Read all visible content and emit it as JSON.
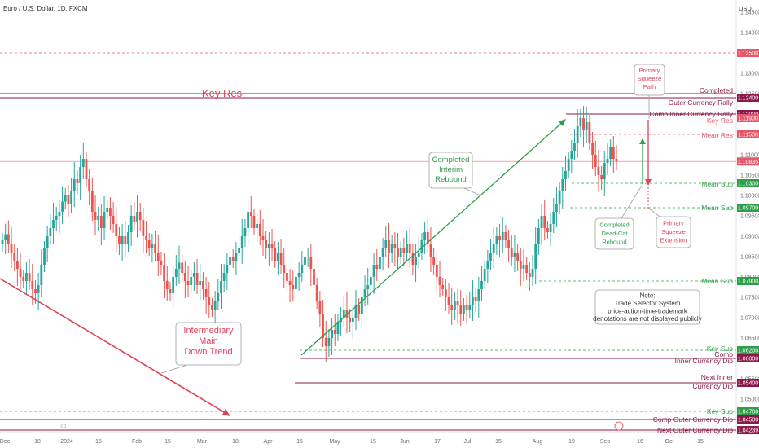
{
  "chart_data": {
    "type": "candlestick",
    "title": "Euro / U.S. Dollar, 1D, FXCM",
    "currency_label": "USD",
    "y_ticks": [
      1.145,
      1.14,
      1.135,
      1.13,
      1.125,
      1.12,
      1.115,
      1.11,
      1.105,
      1.1,
      1.095,
      1.09,
      1.085,
      1.08,
      1.075,
      1.07,
      1.065,
      1.06,
      1.055,
      1.05,
      1.045
    ],
    "ylim": [
      1.042,
      1.148
    ],
    "x_ticks": [
      "Dec",
      "18",
      "2024",
      "15",
      "Feb",
      "15",
      "Mar",
      "18",
      "Apr",
      "15",
      "May",
      "15",
      "Jun",
      "17",
      "Jul",
      "15",
      "Aug",
      "19",
      "Sep",
      "16",
      "Oct",
      "15"
    ],
    "current_price": 1.10835,
    "price_tags": [
      {
        "value": 1.135,
        "label": "1.13500",
        "color": "#e8566b"
      },
      {
        "value": 1.124,
        "label": "1.12400",
        "color": "#8b1a4a"
      },
      {
        "value": 1.12,
        "label": "1.12000",
        "color": "#8b1a4a"
      },
      {
        "value": 1.119,
        "label": "1.11900",
        "color": "#e8566b"
      },
      {
        "value": 1.115,
        "label": "1.11500",
        "color": "#e8566b"
      },
      {
        "value": 1.10835,
        "label": "1.10835",
        "color": "#e8566b"
      },
      {
        "value": 1.103,
        "label": "1.10300",
        "color": "#2e9e4a"
      },
      {
        "value": 1.097,
        "label": "1.09700",
        "color": "#2e9e4a"
      },
      {
        "value": 1.079,
        "label": "1.07900",
        "color": "#2e9e4a"
      },
      {
        "value": 1.062,
        "label": "1.06200",
        "color": "#2e9e4a"
      },
      {
        "value": 1.06,
        "label": "1.06000",
        "color": "#8b1a4a"
      },
      {
        "value": 1.054,
        "label": "1.05400",
        "color": "#8b1a4a"
      },
      {
        "value": 1.047,
        "label": "1.04700",
        "color": "#2e9e4a"
      },
      {
        "value": 1.045,
        "label": "1.04500",
        "color": "#8b1a4a"
      },
      {
        "value": 1.04239,
        "label": "1.04239",
        "color": "#8b1a4a"
      }
    ],
    "levels": [
      {
        "label": "Key Res",
        "value": 1.124,
        "color": "#8b1a4a"
      },
      {
        "label": "Completed",
        "value": 1.125,
        "color": "#8b1a4a"
      },
      {
        "label": "Outer Currency Rally",
        "value": 1.124,
        "color": "#8b1a4a"
      },
      {
        "label": "Comp Inner Currency Rally",
        "value": 1.12,
        "color": "#8b1a4a"
      },
      {
        "label": "Key Res",
        "value": 1.119,
        "color": "#e8566b"
      },
      {
        "label": "Mean Res",
        "value": 1.115,
        "color": "#e8566b"
      },
      {
        "label": "Mean Sup",
        "value": 1.103,
        "color": "#2e9e4a"
      },
      {
        "label": "Mean Sup",
        "value": 1.097,
        "color": "#2e9e4a"
      },
      {
        "label": "Mean Sup",
        "value": 1.079,
        "color": "#2e9e4a"
      },
      {
        "label": "Key Sup",
        "value": 1.062,
        "color": "#2e9e4a"
      },
      {
        "label": "Comp",
        "value": 1.061,
        "color": "#8b1a4a"
      },
      {
        "label": "Inner Currency Dip",
        "value": 1.06,
        "color": "#8b1a4a"
      },
      {
        "label": "Next Inner",
        "value": 1.055,
        "color": "#8b1a4a"
      },
      {
        "label": "Currency Dip",
        "value": 1.054,
        "color": "#8b1a4a"
      },
      {
        "label": "Key Sup",
        "value": 1.047,
        "color": "#2e9e4a"
      },
      {
        "label": "Comp Outer Currency Dip",
        "value": 1.045,
        "color": "#8b1a4a"
      },
      {
        "label": "Next Outer Currency Dip",
        "value": 1.04239,
        "color": "#8b1a4a"
      }
    ],
    "annotations": {
      "key_res_left": "Key Res",
      "primary_squeeze_path": [
        "Primary",
        "Squeeze",
        "Path"
      ],
      "completed_interim_rebound": [
        "Completed",
        "Interim",
        "Rebound"
      ],
      "completed_dead_cat_rebound": [
        "Completed",
        "Dead-Cat",
        "Rebound"
      ],
      "primary_squeeze_extension": [
        "Primary",
        "Squeeze",
        "Extension"
      ],
      "intermediary_main_down_trend": [
        "Intermediary",
        "Main",
        "Down Trend"
      ],
      "note": [
        "Note:",
        "Trade Selector System",
        "price-action-time-trademark",
        "denotations are not displayed publicly"
      ]
    },
    "series": [
      {
        "values": [
          1.089,
          1.0905,
          1.088,
          1.086,
          1.084,
          1.082,
          1.08,
          1.079,
          1.081,
          1.079,
          1.077,
          1.076,
          1.078,
          1.083,
          1.087,
          1.09,
          1.092,
          1.094,
          1.095,
          1.096,
          1.0985,
          1.1,
          1.098,
          1.101,
          1.104,
          1.103,
          1.107,
          1.109,
          1.104,
          1.101,
          1.096,
          1.094,
          1.095,
          1.092,
          1.096,
          1.097,
          1.095,
          1.093,
          1.09,
          1.088,
          1.09,
          1.088,
          1.091,
          1.095,
          1.0935,
          1.096,
          1.094,
          1.09,
          1.089,
          1.087,
          1.088,
          1.086,
          1.084,
          1.083,
          1.079,
          1.077,
          1.076,
          1.08,
          1.082,
          1.0835,
          1.081,
          1.079,
          1.078,
          1.08,
          1.081,
          1.078,
          1.079,
          1.077,
          1.075,
          1.073,
          1.072,
          1.074,
          1.076,
          1.079,
          1.081,
          1.083,
          1.085,
          1.084,
          1.086,
          1.087,
          1.09,
          1.092,
          1.096,
          1.095,
          1.092,
          1.093,
          1.09,
          1.089,
          1.087,
          1.088,
          1.087,
          1.084,
          1.086,
          1.083,
          1.081,
          1.079,
          1.078,
          1.077,
          1.08,
          1.081,
          1.083,
          1.085,
          1.085,
          1.082,
          1.078,
          1.074,
          1.071,
          1.065,
          1.063,
          1.065,
          1.067,
          1.066,
          1.069,
          1.07,
          1.072,
          1.07,
          1.069,
          1.07,
          1.073,
          1.071,
          1.075,
          1.077,
          1.078,
          1.08,
          1.083,
          1.082,
          1.085,
          1.087,
          1.089,
          1.086,
          1.088,
          1.087,
          1.085,
          1.087,
          1.086,
          1.088,
          1.086,
          1.083,
          1.085,
          1.086,
          1.089,
          1.091,
          1.088,
          1.085,
          1.083,
          1.08,
          1.078,
          1.077,
          1.075,
          1.073,
          1.072,
          1.074,
          1.073,
          1.071,
          1.073,
          1.072,
          1.073,
          1.075,
          1.074,
          1.077,
          1.079,
          1.082,
          1.084,
          1.086,
          1.088,
          1.09,
          1.089,
          1.091,
          1.089,
          1.087,
          1.085,
          1.086,
          1.084,
          1.082,
          1.083,
          1.081,
          1.08,
          1.082,
          1.088,
          1.092,
          1.095,
          1.092,
          1.091,
          1.093,
          1.096,
          1.098,
          1.101,
          1.104,
          1.106,
          1.109,
          1.111,
          1.113,
          1.117,
          1.119,
          1.116,
          1.118,
          1.113,
          1.11,
          1.107,
          1.105,
          1.104,
          1.108,
          1.109,
          1.112,
          1.109,
          1.10835
        ]
      }
    ]
  }
}
